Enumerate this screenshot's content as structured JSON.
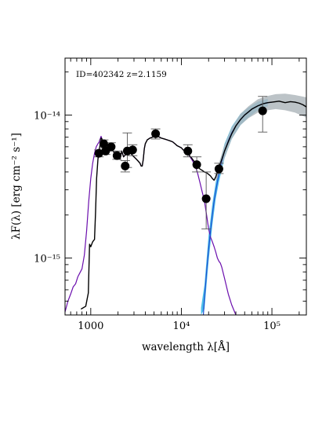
{
  "figure": {
    "annotation": "ID=402342  z=2.1159",
    "xlabel": "wavelength  λ[Å]",
    "ylabel": "λF(λ) [erg cm⁻² s⁻¹]"
  },
  "chart_data": {
    "type": "scatter",
    "xscale": "log",
    "yscale": "log",
    "xlim": [
      520,
      240000
    ],
    "ylim": [
      4e-16,
      2.5e-14
    ],
    "grid": false,
    "x_ticks": [
      {
        "value": 1000,
        "label": "1000"
      },
      {
        "value": 10000,
        "label": "10⁴"
      },
      {
        "value": 100000,
        "label": "10⁵"
      }
    ],
    "y_ticks": [
      {
        "value": 1e-15,
        "label": "10⁻¹⁵"
      },
      {
        "value": 1e-14,
        "label": "10⁻¹⁴"
      }
    ],
    "colors": {
      "points": "#000000",
      "total_model": "#000000",
      "stellar_model": "#6a0dad",
      "dust_model": "#1f4fd1",
      "dust_band": "#38b6e8",
      "total_band": "#b0b8bd"
    },
    "points": [
      {
        "x": 1230,
        "y": 5.4e-15,
        "yerr": [
          5.1e-15,
          5.7e-15
        ]
      },
      {
        "x": 1390,
        "y": 6.3e-15,
        "yerr": [
          5.9e-15,
          6.7e-15
        ]
      },
      {
        "x": 1460,
        "y": 5.6e-15,
        "yerr": [
          5.3e-15,
          5.9e-15
        ]
      },
      {
        "x": 1680,
        "y": 6e-15,
        "yerr": [
          5.6e-15,
          6.4e-15
        ]
      },
      {
        "x": 1950,
        "y": 5.2e-15,
        "yerr": [
          4.9e-15,
          5.6e-15
        ]
      },
      {
        "x": 2400,
        "y": 4.4e-15,
        "yerr": [
          4e-15,
          4.8e-15
        ]
      },
      {
        "x": 2530,
        "y": 5.6e-15,
        "yerr": [
          4.3e-15,
          7.5e-15
        ]
      },
      {
        "x": 2900,
        "y": 5.7e-15,
        "yerr": [
          5.2e-15,
          6.2e-15
        ]
      },
      {
        "x": 5200,
        "y": 7.4e-15,
        "yerr": [
          6.8e-15,
          8e-15
        ]
      },
      {
        "x": 11800,
        "y": 5.6e-15,
        "yerr": [
          5.1e-15,
          6.2e-15
        ]
      },
      {
        "x": 14800,
        "y": 4.5e-15,
        "yerr": [
          4e-15,
          5.1e-15
        ]
      },
      {
        "x": 18800,
        "y": 2.6e-15,
        "yerr": [
          1.6e-15,
          4e-15
        ]
      },
      {
        "x": 26000,
        "y": 4.2e-15,
        "yerr": [
          3.9e-15,
          4.6e-15
        ]
      },
      {
        "x": 79000,
        "y": 1.07e-14,
        "yerr": [
          7.6e-15,
          1.35e-14
        ]
      }
    ],
    "series": [
      {
        "id": "total_model",
        "x": [
          780,
          880,
          940,
          970,
          1000,
          1050,
          1100,
          1130,
          1160,
          1200,
          1240,
          1270,
          1300,
          1330,
          1360,
          1400,
          1450,
          1500,
          1560,
          1620,
          1700,
          1800,
          1900,
          2000,
          2100,
          2200,
          2300,
          2500,
          2700,
          2900,
          3100,
          3300,
          3500,
          3600,
          3700,
          3800,
          3900,
          4000,
          4200,
          4500,
          4800,
          5100,
          5500,
          6000,
          6500,
          7000,
          7500,
          8000,
          8500,
          9000,
          9500,
          10000,
          10500,
          11000,
          11500,
          12000,
          13000,
          14000,
          15000,
          16000,
          17000,
          18000,
          19000,
          20000,
          21000,
          22000,
          23000,
          24000,
          25000,
          26000,
          28000,
          30000,
          33000,
          36000,
          40000,
          45000,
          50000,
          55000,
          60000,
          70000,
          80000,
          90000,
          100000,
          110000,
          120000,
          140000,
          160000,
          180000,
          200000,
          220000,
          240000
        ],
        "y": [
          4.4e-16,
          4.6e-16,
          5.7e-16,
          1.25e-15,
          1.2e-15,
          1.3e-15,
          1.35e-15,
          2.1e-15,
          3.6e-15,
          4.9e-15,
          5.7e-15,
          6.2e-15,
          6.9e-15,
          6.8e-15,
          5.7e-15,
          5.5e-15,
          6.3e-15,
          6.2e-15,
          6e-15,
          5.6e-15,
          5.8e-15,
          5.5e-15,
          5.1e-15,
          5e-15,
          4.9e-15,
          5.6e-15,
          5.1e-15,
          5.4e-15,
          5.5e-15,
          5.2e-15,
          5e-15,
          4.8e-15,
          4.6e-15,
          4.4e-15,
          4.4e-15,
          4.9e-15,
          5.8e-15,
          6.3e-15,
          6.7e-15,
          6.9e-15,
          7e-15,
          7.3e-15,
          7.1e-15,
          6.9e-15,
          6.8e-15,
          6.7e-15,
          6.6e-15,
          6.5e-15,
          6.3e-15,
          6.1e-15,
          6e-15,
          5.9e-15,
          5.7e-15,
          5.6e-15,
          5.4e-15,
          5.3e-15,
          5e-15,
          4.7e-15,
          4.4e-15,
          4.2e-15,
          4.1e-15,
          4e-15,
          3.95e-15,
          3.85e-15,
          3.75e-15,
          3.6e-15,
          3.5e-15,
          3.7e-15,
          4e-15,
          4.3e-15,
          4.9e-15,
          5.6e-15,
          6.5e-15,
          7.4e-15,
          8.4e-15,
          9.3e-15,
          1e-14,
          1.05e-14,
          1.1e-14,
          1.16e-14,
          1.2e-14,
          1.22e-14,
          1.23e-14,
          1.24e-14,
          1.25e-14,
          1.22e-14,
          1.24e-14,
          1.23e-14,
          1.21e-14,
          1.18e-14,
          1.14e-14
        ]
      },
      {
        "id": "stellar_model",
        "x": [
          520,
          560,
          600,
          640,
          680,
          720,
          760,
          800,
          850,
          900,
          950,
          1000,
          1050,
          1100,
          1150,
          1200,
          1240,
          1270,
          1300,
          1330,
          1360,
          1400,
          1450,
          1500,
          1560,
          1620,
          1700,
          1800,
          1900,
          2000,
          2100,
          2200,
          2300,
          2500,
          2700,
          2900,
          3100,
          3300,
          3500,
          3600,
          3700,
          3800,
          3900,
          4000,
          4200,
          4500,
          4800,
          5100,
          5500,
          6000,
          6500,
          7000,
          7500,
          8000,
          8500,
          9000,
          9500,
          10000,
          10500,
          11000,
          11500,
          12000,
          13000,
          14000,
          15000,
          16000,
          17000,
          18000,
          19000,
          20000,
          21000,
          22000,
          23000,
          24000,
          25000,
          26000,
          27000,
          28000,
          30000,
          33000,
          36000,
          40000
        ],
        "y": [
          4.2e-16,
          5e-16,
          5.6e-16,
          6.3e-16,
          6.6e-16,
          7.4e-16,
          7.9e-16,
          8.4e-16,
          1.05e-15,
          1.55e-15,
          2.5e-15,
          3.6e-15,
          4.6e-15,
          5.4e-15,
          6e-15,
          6.3e-15,
          6.5e-15,
          6.8e-15,
          7.1e-15,
          6.8e-15,
          5.8e-15,
          5.5e-15,
          6.3e-15,
          6.2e-15,
          6e-15,
          5.6e-15,
          5.8e-15,
          5.5e-15,
          5.1e-15,
          5e-15,
          4.9e-15,
          5.6e-15,
          5.1e-15,
          5.4e-15,
          5.5e-15,
          5.2e-15,
          5e-15,
          4.8e-15,
          4.6e-15,
          4.4e-15,
          4.4e-15,
          4.9e-15,
          5.8e-15,
          6.3e-15,
          6.7e-15,
          6.9e-15,
          7e-15,
          7.3e-15,
          7.1e-15,
          6.9e-15,
          6.8e-15,
          6.7e-15,
          6.6e-15,
          6.5e-15,
          6.3e-15,
          6.1e-15,
          6e-15,
          5.9e-15,
          5.7e-15,
          5.6e-15,
          5.4e-15,
          5.3e-15,
          4.9e-15,
          4.5e-15,
          4e-15,
          3.4e-15,
          2.9e-15,
          2.5e-15,
          2e-15,
          1.6e-15,
          1.4e-15,
          1.3e-15,
          1.2e-15,
          1.1e-15,
          1e-15,
          9.5e-16,
          9.2e-16,
          8.6e-16,
          7.2e-16,
          5.6e-16,
          4.7e-16,
          4e-16
        ]
      },
      {
        "id": "dust_model",
        "x": [
          17500,
          18000,
          19000,
          20000,
          21000,
          22000,
          23000,
          24000,
          25000,
          26000,
          28000,
          30000,
          33000,
          36000,
          40000,
          45000,
          50000,
          55000,
          60000,
          70000,
          80000,
          90000,
          100000
        ],
        "y": [
          4e-16,
          5.2e-16,
          8e-16,
          1.15e-15,
          1.55e-15,
          2e-15,
          2.5e-15,
          2.95e-15,
          3.4e-15,
          3.9e-15,
          4.8e-15,
          5.6e-15,
          6.6e-15,
          7.5e-15,
          8.4e-15,
          9.3e-15,
          1e-14,
          1.05e-14,
          1.1e-14,
          1.16e-14,
          1.2e-14,
          1.22e-14,
          1.23e-14
        ]
      }
    ],
    "bands": [
      {
        "id": "dust_band",
        "x": [
          16500,
          18000,
          20000,
          22000,
          24000,
          26000,
          30000,
          36000,
          45000,
          55000,
          70000,
          90000
        ],
        "y_low": [
          4e-16,
          4.4e-16,
          9.5e-16,
          1.7e-15,
          2.6e-15,
          3.4e-15,
          5e-15,
          6.8e-15,
          8.5e-15,
          9.6e-15,
          1.08e-14,
          1.15e-14
        ],
        "y_high": [
          4.5e-16,
          6.5e-16,
          1.45e-15,
          2.4e-15,
          3.4e-15,
          4.4e-15,
          6.3e-15,
          8.3e-15,
          1.02e-14,
          1.13e-14,
          1.24e-14,
          1.3e-14
        ]
      },
      {
        "id": "total_band",
        "x": [
          24000,
          26000,
          30000,
          36000,
          45000,
          55000,
          70000,
          90000,
          110000,
          140000,
          180000,
          240000
        ],
        "y_low": [
          3.45e-15,
          3.8e-15,
          5e-15,
          6.8e-15,
          8.5e-15,
          9.5e-15,
          1.04e-14,
          1.08e-14,
          1.1e-14,
          1.08e-14,
          1.04e-14,
          9.6e-15
        ],
        "y_high": [
          3.9e-15,
          4.6e-15,
          6.2e-15,
          8.2e-15,
          1.02e-14,
          1.15e-14,
          1.29e-14,
          1.36e-14,
          1.4e-14,
          1.41e-14,
          1.38e-14,
          1.33e-14
        ]
      }
    ]
  }
}
